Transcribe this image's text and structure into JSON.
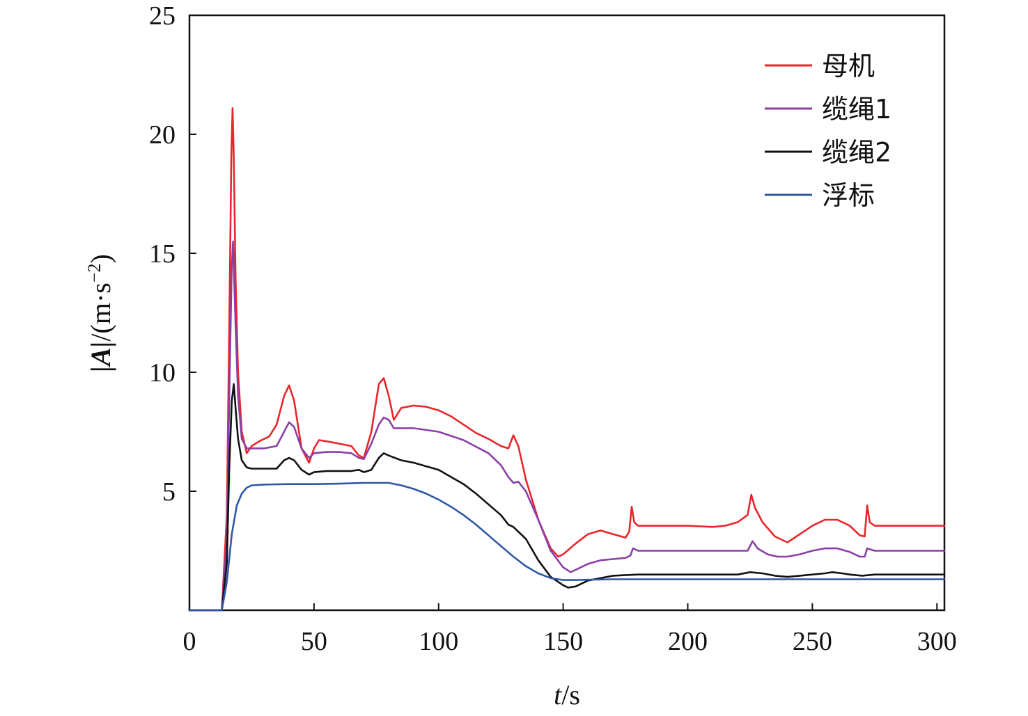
{
  "chart_data": {
    "type": "line",
    "xlabel": {
      "var": "t",
      "unit": "/s"
    },
    "ylabel": {
      "bars": "|A|",
      "unit": "/(m·s",
      "exp": "−2",
      "close": ")"
    },
    "xlim": [
      0,
      303
    ],
    "ylim": [
      0,
      25
    ],
    "xticks": [
      0,
      50,
      100,
      150,
      200,
      250,
      300
    ],
    "yticks": [
      5,
      10,
      15,
      20,
      25
    ],
    "grid": false,
    "legend_position": "top-right",
    "series": [
      {
        "name": "母机",
        "color": "#e8262b",
        "x": [
          0,
          10,
          13,
          15,
          16,
          16.8,
          17.3,
          17.8,
          18.5,
          19.5,
          21,
          23,
          25,
          28,
          32,
          35,
          38,
          40,
          42,
          45,
          48,
          50,
          52,
          55,
          60,
          65,
          68,
          70,
          73,
          76,
          78,
          80,
          82,
          85,
          90,
          95,
          100,
          105,
          110,
          115,
          120,
          125,
          128,
          130,
          132,
          135,
          140,
          145,
          148,
          150,
          155,
          160,
          165,
          170,
          175,
          176.5,
          177.5,
          178.5,
          180,
          185,
          190,
          200,
          210,
          215,
          220,
          224,
          225.5,
          227,
          230,
          235,
          240,
          245,
          250,
          255,
          260,
          265,
          269,
          271,
          272,
          273,
          275,
          280,
          290,
          300,
          303
        ],
        "y": [
          0,
          0,
          0,
          4,
          12,
          19,
          21.1,
          19,
          14,
          10,
          7.5,
          6.6,
          6.9,
          7.1,
          7.3,
          7.8,
          9,
          9.45,
          8.8,
          6.8,
          6.2,
          6.8,
          7.15,
          7.1,
          7.0,
          6.9,
          6.5,
          6.4,
          7.5,
          9.5,
          9.75,
          9.0,
          8.0,
          8.5,
          8.6,
          8.55,
          8.4,
          8.15,
          7.8,
          7.45,
          7.2,
          6.9,
          6.8,
          7.35,
          6.9,
          5.5,
          3.8,
          2.6,
          2.25,
          2.35,
          2.8,
          3.2,
          3.35,
          3.2,
          3.05,
          3.3,
          4.35,
          3.7,
          3.55,
          3.55,
          3.55,
          3.55,
          3.5,
          3.55,
          3.7,
          4.0,
          4.85,
          4.3,
          3.7,
          3.1,
          2.85,
          3.2,
          3.55,
          3.8,
          3.8,
          3.55,
          3.15,
          3.1,
          4.4,
          3.7,
          3.55,
          3.55,
          3.55,
          3.55,
          3.55
        ]
      },
      {
        "name": "缆绳1",
        "color": "#8b3fa6",
        "x": [
          0,
          10,
          13,
          15,
          16,
          17,
          17.5,
          18.5,
          19.5,
          21,
          23,
          25,
          30,
          35,
          38,
          40,
          42,
          45,
          48,
          50,
          55,
          60,
          65,
          68,
          70,
          73,
          76,
          78,
          80,
          82,
          90,
          100,
          110,
          120,
          125,
          128,
          130,
          132,
          135,
          140,
          145,
          150,
          153,
          155,
          160,
          165,
          170,
          175,
          177,
          178,
          180,
          190,
          200,
          210,
          220,
          224,
          226,
          228,
          232,
          236,
          240,
          245,
          250,
          255,
          260,
          265,
          269,
          271,
          272,
          275,
          290,
          303
        ],
        "y": [
          0,
          0,
          0,
          3,
          9,
          14.5,
          15.5,
          12,
          9,
          7.2,
          6.8,
          6.8,
          6.8,
          6.9,
          7.5,
          7.9,
          7.7,
          6.8,
          6.4,
          6.6,
          6.65,
          6.65,
          6.6,
          6.4,
          6.35,
          7.0,
          7.8,
          8.1,
          8.0,
          7.65,
          7.65,
          7.5,
          7.15,
          6.6,
          6.1,
          5.6,
          5.35,
          5.4,
          5.0,
          3.8,
          2.5,
          1.8,
          1.6,
          1.7,
          1.95,
          2.1,
          2.15,
          2.2,
          2.3,
          2.6,
          2.5,
          2.5,
          2.5,
          2.5,
          2.5,
          2.5,
          2.9,
          2.6,
          2.35,
          2.25,
          2.25,
          2.35,
          2.5,
          2.6,
          2.6,
          2.45,
          2.25,
          2.25,
          2.6,
          2.5,
          2.5,
          2.5
        ]
      },
      {
        "name": "缆绳2",
        "color": "#111111",
        "x": [
          0,
          10,
          13,
          15,
          16,
          17,
          17.8,
          18.5,
          19.5,
          21,
          23,
          25,
          30,
          35,
          38,
          40,
          42,
          45,
          48,
          50,
          55,
          60,
          65,
          68,
          70,
          73,
          76,
          78,
          80,
          85,
          90,
          95,
          100,
          105,
          110,
          115,
          120,
          125,
          128,
          130,
          135,
          140,
          145,
          150,
          152,
          155,
          160,
          170,
          180,
          190,
          200,
          210,
          220,
          225,
          230,
          235,
          240,
          245,
          250,
          255,
          258,
          262,
          265,
          270,
          275,
          290,
          303
        ],
        "y": [
          0,
          0,
          0,
          2,
          6,
          8.8,
          9.5,
          8.5,
          7.2,
          6.3,
          6.0,
          5.95,
          5.95,
          5.95,
          6.3,
          6.4,
          6.3,
          5.9,
          5.7,
          5.8,
          5.85,
          5.85,
          5.85,
          5.9,
          5.8,
          5.9,
          6.4,
          6.6,
          6.5,
          6.3,
          6.2,
          6.05,
          5.9,
          5.6,
          5.3,
          4.9,
          4.45,
          4.0,
          3.6,
          3.5,
          3.0,
          2.1,
          1.4,
          1.05,
          0.95,
          1.0,
          1.25,
          1.45,
          1.5,
          1.5,
          1.5,
          1.5,
          1.5,
          1.6,
          1.55,
          1.45,
          1.4,
          1.45,
          1.5,
          1.55,
          1.6,
          1.55,
          1.5,
          1.45,
          1.5,
          1.5,
          1.5
        ]
      },
      {
        "name": "浮标",
        "color": "#2e57a6",
        "x": [
          0,
          10,
          13,
          15,
          17,
          19,
          21,
          23,
          25,
          30,
          40,
          50,
          60,
          70,
          80,
          85,
          90,
          95,
          100,
          105,
          110,
          115,
          120,
          125,
          130,
          135,
          140,
          145,
          150,
          155,
          160,
          170,
          180,
          200,
          250,
          303
        ],
        "y": [
          0,
          0,
          0,
          1.2,
          3.2,
          4.4,
          4.9,
          5.15,
          5.25,
          5.28,
          5.3,
          5.3,
          5.32,
          5.35,
          5.35,
          5.25,
          5.1,
          4.9,
          4.65,
          4.35,
          4.0,
          3.6,
          3.15,
          2.7,
          2.25,
          1.85,
          1.55,
          1.35,
          1.27,
          1.27,
          1.28,
          1.3,
          1.3,
          1.3,
          1.3,
          1.3
        ]
      }
    ]
  }
}
